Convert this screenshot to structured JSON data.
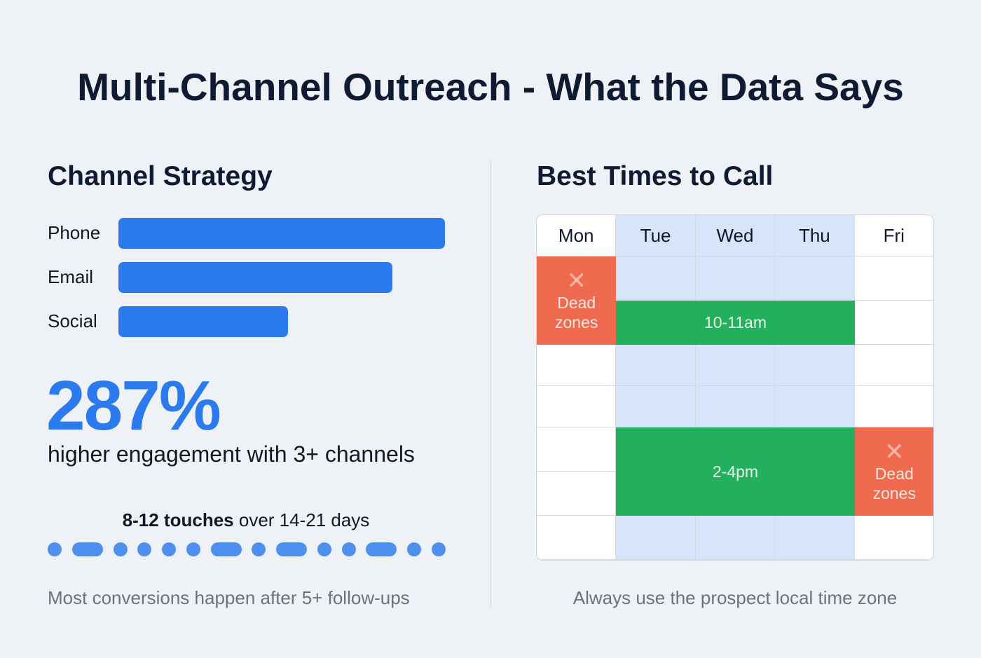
{
  "title": "Multi-Channel Outreach - What the Data Says",
  "left": {
    "heading": "Channel Strategy",
    "channels": [
      {
        "label": "Phone",
        "relative_value": 100
      },
      {
        "label": "Email",
        "relative_value": 84
      },
      {
        "label": "Social",
        "relative_value": 52
      }
    ],
    "stat": "287%",
    "stat_caption": "higher engagement with 3+ channels",
    "touches_bold": "8-12 touches",
    "touches_rest": " over 14-21 days",
    "touch_marks": [
      "dot",
      "dash",
      "dot",
      "dot",
      "dot",
      "dot",
      "dash",
      "dot",
      "dash",
      "dot",
      "dot",
      "dash",
      "dot",
      "dot"
    ],
    "footer": "Most conversions happen after 5+ follow-ups"
  },
  "right": {
    "heading": "Best Times to Call",
    "days": [
      "Mon",
      "Tue",
      "Wed",
      "Thu",
      "Fri"
    ],
    "best": [
      {
        "label": "10-11am"
      },
      {
        "label": "2-4pm"
      }
    ],
    "dead": [
      {
        "label1": "Dead",
        "label2": "zones"
      },
      {
        "label1": "Dead",
        "label2": "zones"
      }
    ],
    "footer": "Always use the prospect local time zone"
  },
  "colors": {
    "accent": "#2b7bef",
    "good": "#22b05c",
    "bad": "#f06a4f",
    "highlight": "#d6e5fc"
  }
}
